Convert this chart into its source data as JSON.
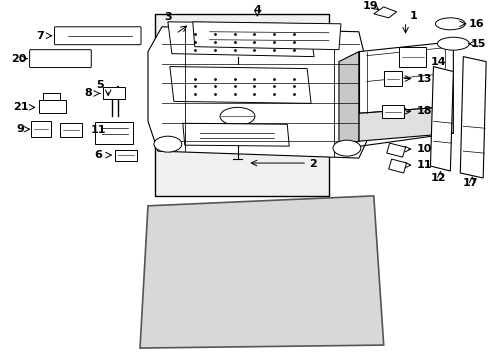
{
  "bg_color": "#ffffff",
  "line_color": "#000000",
  "box1_color": "#f0f0f0",
  "box2_color": "#d8d8d8",
  "figsize": [
    4.89,
    3.6
  ],
  "dpi": 100
}
